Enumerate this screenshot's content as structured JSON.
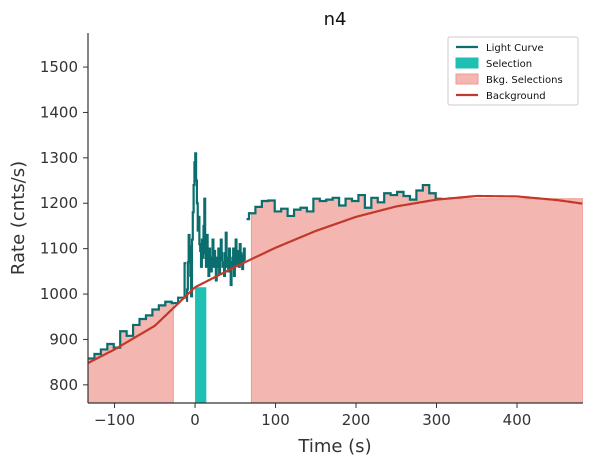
{
  "chart_data": {
    "type": "line",
    "title": "n4",
    "xlabel": "Time (s)",
    "ylabel": "Rate (cnts/s)",
    "xlim": [
      -133,
      482
    ],
    "ylim": [
      760,
      1575
    ],
    "x_ticks": [
      -100,
      0,
      100,
      200,
      300,
      400
    ],
    "y_ticks": [
      800,
      900,
      1000,
      1100,
      1200,
      1300,
      1400,
      1500
    ],
    "x_tick_labels": [
      "−100",
      "0",
      "100",
      "200",
      "300",
      "400"
    ],
    "y_tick_labels": [
      "800",
      "900",
      "1000",
      "1100",
      "1200",
      "1300",
      "1400",
      "1500"
    ],
    "legend": {
      "position": "top-right",
      "items": [
        {
          "label": "Light Curve",
          "kind": "line",
          "color": "#0a6e6e"
        },
        {
          "label": "Selection",
          "kind": "patch",
          "color": "#1fbfb3"
        },
        {
          "label": "Bkg. Selections",
          "kind": "patch",
          "color": "#f4b6b0"
        },
        {
          "label": "Background",
          "kind": "line",
          "color": "#c0392b"
        }
      ]
    },
    "light_curve_coarse": {
      "bin_width": 8,
      "start": -133,
      "values": [
        858,
        868,
        878,
        890,
        882,
        918,
        908,
        932,
        945,
        953,
        966,
        975,
        983,
        980,
        992,
        1068,
        1075,
        1090,
        1105,
        1112,
        1125,
        1138,
        1150,
        1168,
        1165,
        1178,
        1192,
        1205,
        1206,
        1182,
        1188,
        1172,
        1186,
        1190,
        1182,
        1210,
        1205,
        1208,
        1212,
        1195,
        1210,
        1205,
        1218,
        1190,
        1212,
        1202,
        1222,
        1218,
        1225,
        1216,
        1208,
        1228,
        1240,
        1222,
        1210
      ],
      "segments": [
        [
          -133,
          -11
        ],
        [
          64,
          482
        ]
      ]
    },
    "light_curve_fine": {
      "start": -11,
      "bin_width": 1.024,
      "values": [
        985,
        1010,
        1070,
        1130,
        1105,
        1040,
        995,
        1120,
        1180,
        1240,
        1290,
        1310,
        1250,
        1200,
        1140,
        1170,
        1110,
        1095,
        1060,
        1120,
        1080,
        1150,
        1210,
        1090,
        1060,
        1130,
        1085,
        1040,
        1100,
        1070,
        1050,
        1080,
        1120,
        1060,
        1095,
        1075,
        1030,
        1080,
        1060,
        1100,
        1045,
        1075,
        1120,
        1090,
        1060,
        1070,
        1040,
        1090,
        1135,
        1060,
        1080,
        1050,
        1100,
        1070,
        1020,
        1060,
        1080,
        1100,
        1040,
        1075,
        1120,
        1065,
        1095,
        1080,
        1060,
        1110,
        1090,
        1070,
        1055,
        1085,
        1100,
        1075
      ]
    },
    "selection": {
      "x_start": 0,
      "x_end": 14,
      "color": "#1fbfb3"
    },
    "bkg_selections": [
      {
        "x_start": -133,
        "x_end": -27
      },
      {
        "x_start": 70,
        "x_end": 482
      }
    ],
    "background_fit": {
      "color": "#c0392b",
      "x": [
        -133,
        -100,
        -50,
        0,
        50,
        100,
        150,
        200,
        250,
        300,
        350,
        400,
        450,
        482
      ],
      "y": [
        848,
        878,
        930,
        1015,
        1060,
        1102,
        1139,
        1170,
        1193,
        1208,
        1216,
        1215,
        1207,
        1199
      ]
    }
  }
}
